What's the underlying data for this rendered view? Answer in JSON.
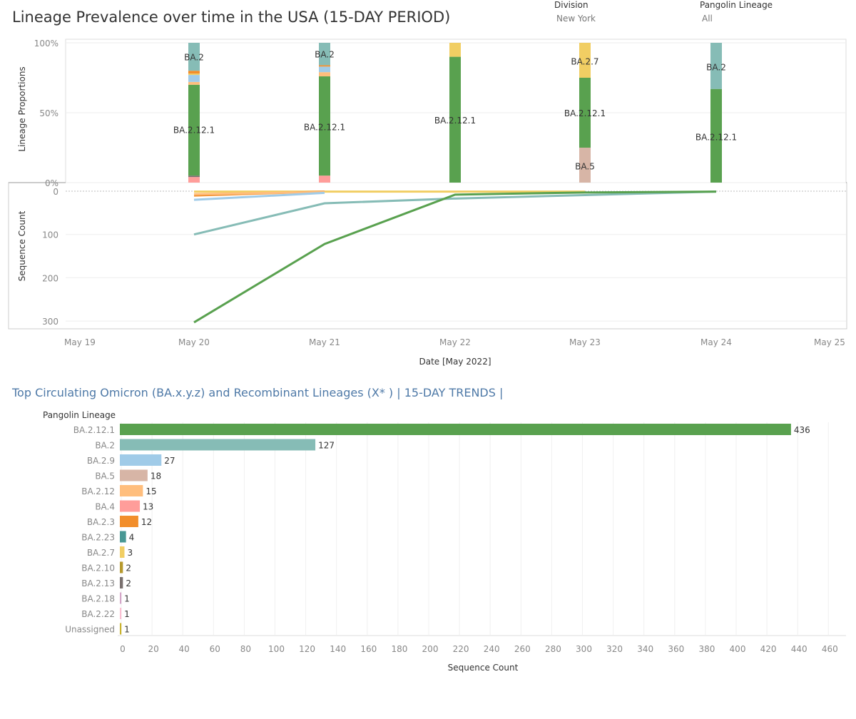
{
  "header": {
    "title": "Lineage Prevalence over time in the USA (15-DAY PERIOD)",
    "filters": [
      {
        "label": "Division",
        "value": "New York"
      },
      {
        "label": "Pangolin Lineage",
        "value": "All"
      }
    ]
  },
  "colors": {
    "BA.2.12.1": "#59a14f",
    "BA.2": "#86bcb6",
    "BA.2.9": "#a0cbe8",
    "BA.5": "#d7b5a6",
    "BA.2.12": "#ffbe7d",
    "BA.4": "#ff9d9a",
    "BA.2.3": "#f28e2b",
    "BA.2.23": "#499894",
    "BA.2.7": "#f1ce63",
    "BA.2.10": "#b6992d",
    "BA.2.13": "#79706e",
    "BA.2.18": "#d4a6c8",
    "BA.2.22": "#fabfd2",
    "Unassigned": "#c9b22d"
  },
  "chart_data": [
    {
      "type": "bar",
      "subtype": "stacked-100",
      "ylabel": "Lineage Proportions",
      "yticks": [
        "100%",
        "50%",
        "0%"
      ],
      "ylim": [
        0,
        100
      ],
      "dates": [
        "May 20",
        "May 21",
        "May 22",
        "May 23",
        "May 24"
      ],
      "stacks": [
        {
          "date": "May 20",
          "segments": [
            [
              "BA.4",
              4
            ],
            [
              "BA.2.13",
              1
            ],
            [
              "BA.2.12.1",
              65
            ],
            [
              "BA.2.12",
              2
            ],
            [
              "BA.2.9",
              5
            ],
            [
              "BA.2.7",
              1
            ],
            [
              "BA.2.3",
              2
            ],
            [
              "BA.2",
              20
            ]
          ],
          "labels": [
            [
              "BA.2.12.1",
              38
            ],
            [
              "BA.2",
              90
            ]
          ]
        },
        {
          "date": "May 21",
          "segments": [
            [
              "BA.4",
              5
            ],
            [
              "BA.2.12.1",
              71
            ],
            [
              "BA.2.12",
              3
            ],
            [
              "BA.2.9",
              4
            ],
            [
              "BA.2.3",
              1
            ],
            [
              "BA.2",
              16
            ]
          ],
          "labels": [
            [
              "BA.2.12.1",
              40
            ],
            [
              "BA.2",
              92
            ]
          ]
        },
        {
          "date": "May 22",
          "segments": [
            [
              "BA.2.12.1",
              90
            ],
            [
              "BA.2.7",
              10
            ]
          ],
          "labels": [
            [
              "BA.2.12.1",
              45
            ]
          ]
        },
        {
          "date": "May 23",
          "segments": [
            [
              "BA.5",
              25
            ],
            [
              "BA.2.12.1",
              50
            ],
            [
              "BA.2.7",
              25
            ]
          ],
          "labels": [
            [
              "BA.5",
              12
            ],
            [
              "BA.2.12.1",
              50
            ],
            [
              "BA.2.7",
              87
            ]
          ]
        },
        {
          "date": "May 24",
          "segments": [
            [
              "BA.2.12.1",
              67
            ],
            [
              "BA.2",
              33
            ]
          ],
          "labels": [
            [
              "BA.2.12.1",
              33
            ],
            [
              "BA.2",
              83
            ]
          ]
        }
      ]
    },
    {
      "type": "line",
      "ylabel": "Sequence Count",
      "xlabel": "Date [May 2022]",
      "yticks": [
        "0",
        "100",
        "200",
        "300"
      ],
      "ylim": [
        0,
        300
      ],
      "y_reversed": true,
      "xticks": [
        "May 19",
        "May 20",
        "May 21",
        "May 22",
        "May 23",
        "May 24",
        "May 25"
      ],
      "series": [
        {
          "name": "BA.2.12.1",
          "points": [
            [
              "May 20",
              303
            ],
            [
              "May 21",
              122
            ],
            [
              "May 22",
              8
            ],
            [
              "May 23",
              3
            ],
            [
              "May 24",
              1
            ]
          ]
        },
        {
          "name": "BA.2",
          "points": [
            [
              "May 20",
              100
            ],
            [
              "May 21",
              28
            ],
            [
              "May 22",
              17
            ],
            [
              "May 23",
              9
            ],
            [
              "May 24",
              1
            ]
          ]
        },
        {
          "name": "BA.2.9",
          "points": [
            [
              "May 20",
              20
            ],
            [
              "May 21",
              4
            ]
          ]
        },
        {
          "name": "BA.2.12",
          "points": [
            [
              "May 20",
              7
            ],
            [
              "May 21",
              2
            ]
          ]
        },
        {
          "name": "BA.2.3",
          "points": [
            [
              "May 20",
              10
            ],
            [
              "May 21",
              1
            ]
          ]
        },
        {
          "name": "BA.2.7",
          "points": [
            [
              "May 20",
              1
            ],
            [
              "May 21",
              1
            ],
            [
              "May 22",
              1
            ],
            [
              "May 23",
              1
            ]
          ]
        }
      ]
    },
    {
      "type": "bar",
      "orientation": "horizontal",
      "title": "Top Circulating Omicron (BA.x.y.z) and Recombinant Lineages (X* )  | 15-DAY TRENDS |",
      "row_header": "Pangolin Lineage",
      "xlabel": "Sequence Count",
      "xlim": [
        0,
        460
      ],
      "xticks": [
        0,
        20,
        40,
        60,
        80,
        100,
        120,
        140,
        160,
        180,
        200,
        220,
        240,
        260,
        280,
        300,
        320,
        340,
        360,
        380,
        400,
        420,
        440,
        460
      ],
      "categories": [
        "BA.2.12.1",
        "BA.2",
        "BA.2.9",
        "BA.5",
        "BA.2.12",
        "BA.4",
        "BA.2.3",
        "BA.2.23",
        "BA.2.7",
        "BA.2.10",
        "BA.2.13",
        "BA.2.18",
        "BA.2.22",
        "Unassigned"
      ],
      "values": [
        436,
        127,
        27,
        18,
        15,
        13,
        12,
        4,
        3,
        2,
        2,
        1,
        1,
        1
      ]
    }
  ]
}
